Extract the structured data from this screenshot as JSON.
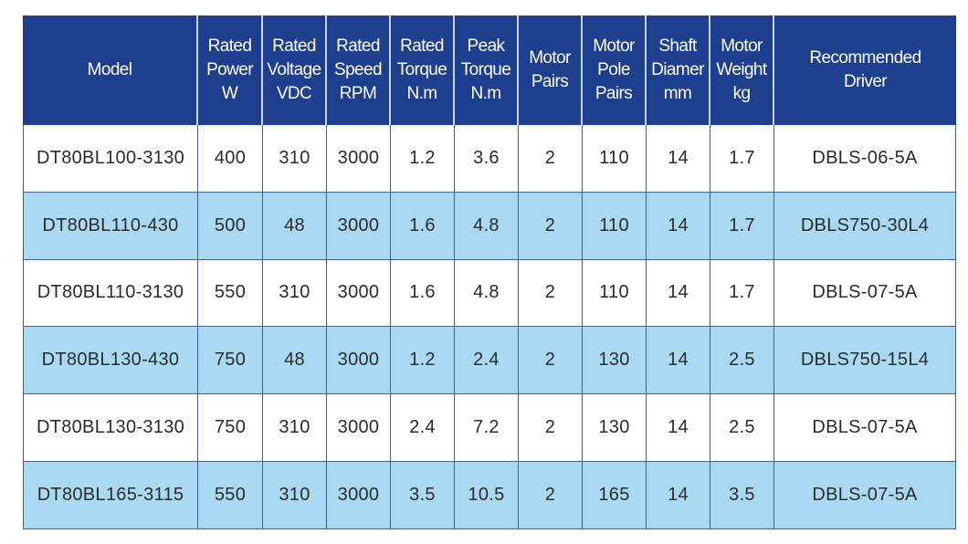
{
  "table": {
    "header": [
      [
        "Model"
      ],
      [
        "Rated",
        "Power",
        "W"
      ],
      [
        "Rated",
        "Voltage",
        "VDC"
      ],
      [
        "Rated",
        "Speed",
        "RPM"
      ],
      [
        "Rated",
        "Torque",
        "N.m"
      ],
      [
        "Peak",
        "Torque",
        "N.m"
      ],
      [
        "Motor",
        "Pairs"
      ],
      [
        "Motor",
        "Pole",
        "Pairs"
      ],
      [
        "Shaft",
        "Diamer",
        "mm"
      ],
      [
        "Motor",
        "Weight",
        "kg"
      ],
      [
        "Recommended",
        "Driver"
      ]
    ],
    "rows": [
      [
        "DT80BL100-3130",
        "400",
        "310",
        "3000",
        "1.2",
        "3.6",
        "2",
        "110",
        "14",
        "1.7",
        "DBLS-06-5A"
      ],
      [
        "DT80BL110-430",
        "500",
        "48",
        "3000",
        "1.6",
        "4.8",
        "2",
        "110",
        "14",
        "1.7",
        "DBLS750-30L4"
      ],
      [
        "DT80BL110-3130",
        "550",
        "310",
        "3000",
        "1.6",
        "4.8",
        "2",
        "110",
        "14",
        "1.7",
        "DBLS-07-5A"
      ],
      [
        "DT80BL130-430",
        "750",
        "48",
        "3000",
        "1.2",
        "2.4",
        "2",
        "130",
        "14",
        "2.5",
        "DBLS750-15L4"
      ],
      [
        "DT80BL130-3130",
        "750",
        "310",
        "3000",
        "2.4",
        "7.2",
        "2",
        "130",
        "14",
        "2.5",
        "DBLS-07-5A"
      ],
      [
        "DT80BL165-3115",
        "550",
        "310",
        "3000",
        "3.5",
        "10.5",
        "2",
        "165",
        "14",
        "3.5",
        "DBLS-07-5A"
      ]
    ]
  }
}
